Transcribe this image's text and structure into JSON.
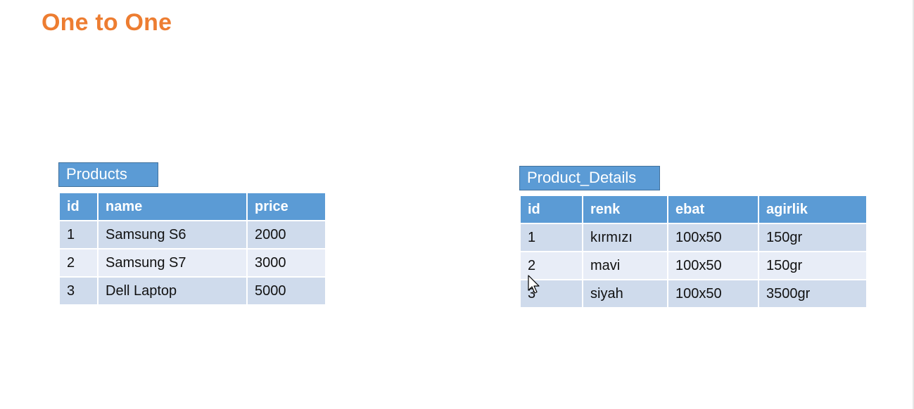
{
  "slide": {
    "title": "One to One"
  },
  "products_table": {
    "caption": "Products",
    "columns": [
      "id",
      "name",
      "price"
    ],
    "rows": [
      [
        "1",
        "Samsung S6",
        "2000"
      ],
      [
        "2",
        "Samsung S7",
        "3000"
      ],
      [
        "3",
        "Dell Laptop",
        "5000"
      ]
    ]
  },
  "details_table": {
    "caption": "Product_Details",
    "columns": [
      "id",
      "renk",
      "ebat",
      "agirlik"
    ],
    "rows": [
      [
        "1",
        "kırmızı",
        "100x50",
        "150gr"
      ],
      [
        "2",
        "mavi",
        "100x50",
        "150gr"
      ],
      [
        "3",
        "siyah",
        "100x50",
        "3500gr"
      ]
    ]
  },
  "colors": {
    "title": "#ed7d31",
    "header": "#5b9bd5",
    "row_odd": "#cfdbec",
    "row_even": "#e8edf7"
  },
  "icons": {
    "cursor": "mouse-pointer-icon"
  }
}
